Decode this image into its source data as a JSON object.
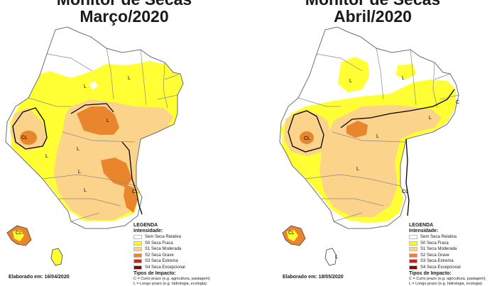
{
  "maps": [
    {
      "title_line1": "Monitor de Secas",
      "title_line2": "Março/2020",
      "elaborado": "Elaborado em: 16/04/2020",
      "impact_labels": [
        "L",
        "L",
        "L",
        "L",
        "L",
        "L",
        "L",
        "CL",
        "CL",
        "CL"
      ]
    },
    {
      "title_line1": "Monitor de Secas",
      "title_line2": "Abril/2020",
      "elaborado": "Elaborado em: 18/05/2020",
      "impact_labels": [
        "L",
        "L",
        "L",
        "C",
        "CL",
        "CL",
        "CL",
        "L",
        "L",
        "L"
      ]
    }
  ],
  "legend": {
    "title": "LEGENDA",
    "intensity_heading": "Intensidade:",
    "items": [
      {
        "label": "Sem Seca Relativa",
        "color": "#ffffff"
      },
      {
        "label": "S0 Seca Fraca",
        "color": "#ffff00"
      },
      {
        "label": "S1 Seca Moderada",
        "color": "#fcd38a"
      },
      {
        "label": "S2 Seca Grave",
        "color": "#e9852c"
      },
      {
        "label": "S3 Seca Extrema",
        "color": "#d11f10"
      },
      {
        "label": "S4 Seca Excepcional",
        "color": "#7a0a0a"
      }
    ],
    "impact_heading": "Tipos de Impacto:",
    "impact_short": "C = Curto prazo (e.g. agricultura, pastagem)",
    "impact_long": "L = Longo prazo (e.g. hidrologia, ecologia)"
  }
}
